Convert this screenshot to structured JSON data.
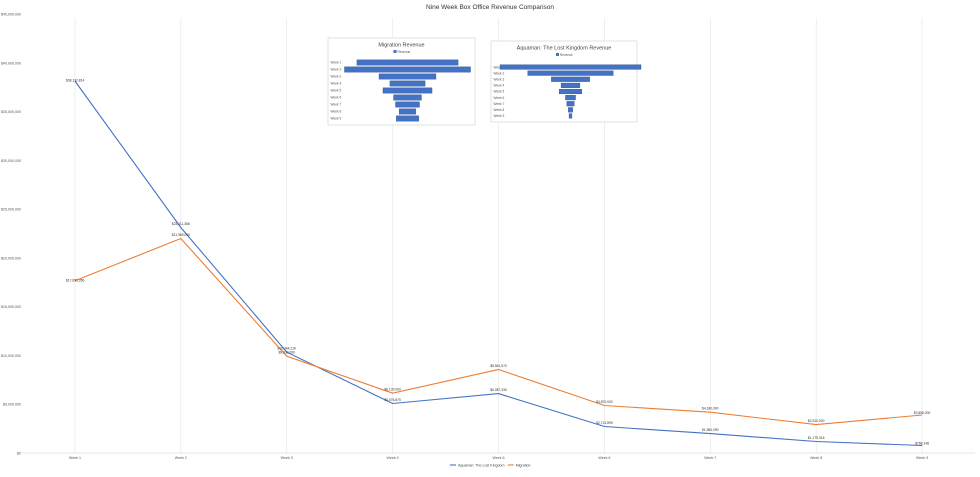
{
  "chart_data": [
    {
      "type": "line",
      "title": "Nine Week Box Office Revenue Comparison",
      "xlabel": "",
      "ylabel": "",
      "categories": [
        "Week 1",
        "Week 2",
        "Week 3",
        "Week 4",
        "Week 5",
        "Week 6",
        "Week 7",
        "Week 8",
        "Week 9"
      ],
      "yticks": [
        "$0",
        "$5,000,000",
        "$10,000,000",
        "$15,000,000",
        "$20,000,000",
        "$25,000,000",
        "$30,000,000",
        "$35,000,000",
        "$40,000,000",
        "$45,000,000"
      ],
      "ylim": [
        0,
        45000000
      ],
      "grid": "vertical",
      "legend": "bottom",
      "series": [
        {
          "name": "Aquaman: The Lost Kingdom",
          "color": "#4472c4",
          "values": [
            38132814,
            23111368,
            10344219,
            5076875,
            6087330,
            2713899,
            1984090,
            1179318,
            768148
          ],
          "labels": [
            "$38,132,814",
            "$23,111,368",
            "$10,344,219",
            "$5,076,875",
            "$6,087,330",
            "$2,713,899",
            "$1,984,090",
            "$1,179,318",
            "$768,148"
          ]
        },
        {
          "name": "Migration",
          "color": "#ed7d31",
          "values": [
            17653356,
            21989000,
            9930000,
            6130000,
            8561570,
            4870000,
            4180000,
            2910000,
            3896000
          ],
          "labels": [
            "$17,653,356",
            "$21,989,000",
            "$9,930,000",
            "$6,130,000",
            "$8,561,570",
            "$4,870,000",
            "$4,180,000",
            "$2,910,000",
            "$3,896,000"
          ]
        }
      ]
    },
    {
      "type": "bar",
      "title": "Migration Revenue",
      "legend_label": "Revenue",
      "color": "#4472c4",
      "categories": [
        "Week 1",
        "Week 2",
        "Week 3",
        "Week 4",
        "Week 5",
        "Week 6",
        "Week 7",
        "Week 8",
        "Week 9"
      ],
      "values": [
        17653356,
        21989000,
        9930000,
        6130000,
        8561570,
        4870000,
        4180000,
        2910000,
        3896000
      ]
    },
    {
      "type": "bar",
      "title": "Aquaman: The Lost Kingdom Revenue",
      "legend_label": "Revenue",
      "color": "#4472c4",
      "categories": [
        "Week 1",
        "Week 2",
        "Week 3",
        "Week 4",
        "Week 5",
        "Week 6",
        "Week 7",
        "Week 8",
        "Week 9"
      ],
      "values": [
        38132814,
        23111368,
        10344219,
        5076875,
        6087330,
        2713899,
        1984090,
        1179318,
        768148
      ]
    }
  ]
}
